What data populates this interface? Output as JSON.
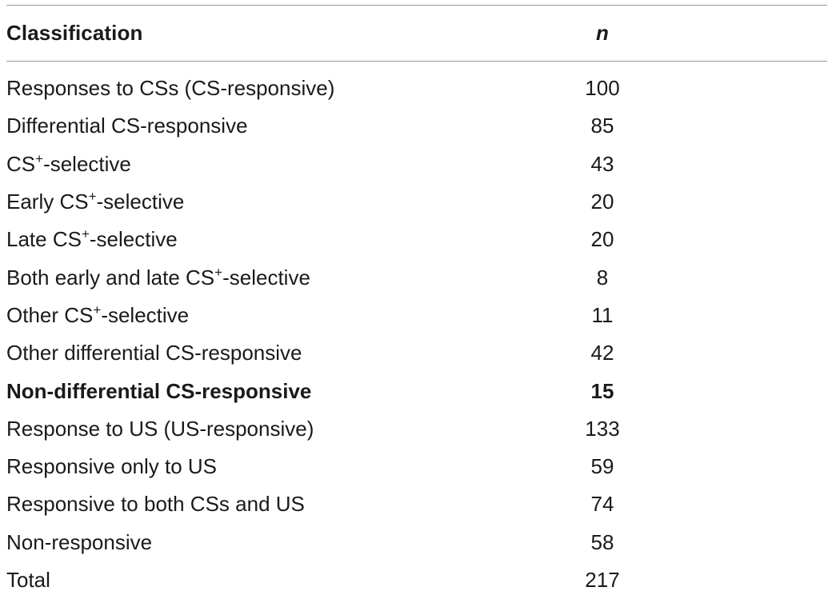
{
  "table": {
    "headers": {
      "classification": "Classification",
      "n": "n"
    },
    "rows": [
      {
        "pre": "Responses to CSs (CS-responsive)",
        "sup": "",
        "post": "",
        "n": "100",
        "bold": false
      },
      {
        "pre": "Differential CS-responsive",
        "sup": "",
        "post": "",
        "n": "85",
        "bold": false
      },
      {
        "pre": "CS",
        "sup": "+",
        "post": "-selective",
        "n": "43",
        "bold": false
      },
      {
        "pre": "Early CS",
        "sup": "+",
        "post": "-selective",
        "n": "20",
        "bold": false
      },
      {
        "pre": "Late CS",
        "sup": "+",
        "post": "-selective",
        "n": "20",
        "bold": false
      },
      {
        "pre": "Both early and late CS",
        "sup": "+",
        "post": "-selective",
        "n": "8",
        "bold": false
      },
      {
        "pre": "Other CS",
        "sup": "+",
        "post": "-selective",
        "n": "11",
        "bold": false
      },
      {
        "pre": "Other differential CS-responsive",
        "sup": "",
        "post": "",
        "n": "42",
        "bold": false
      },
      {
        "pre": "Non-differential CS-responsive",
        "sup": "",
        "post": "",
        "n": "15",
        "bold": true
      },
      {
        "pre": "Response to US (US-responsive)",
        "sup": "",
        "post": "",
        "n": "133",
        "bold": false
      },
      {
        "pre": "Responsive only to US",
        "sup": "",
        "post": "",
        "n": "59",
        "bold": false
      },
      {
        "pre": "Responsive to both CSs and US",
        "sup": "",
        "post": "",
        "n": "74",
        "bold": false
      },
      {
        "pre": "Non-responsive",
        "sup": "",
        "post": "",
        "n": "58",
        "bold": false
      },
      {
        "pre": "Total",
        "sup": "",
        "post": "",
        "n": "217",
        "bold": false
      }
    ]
  }
}
